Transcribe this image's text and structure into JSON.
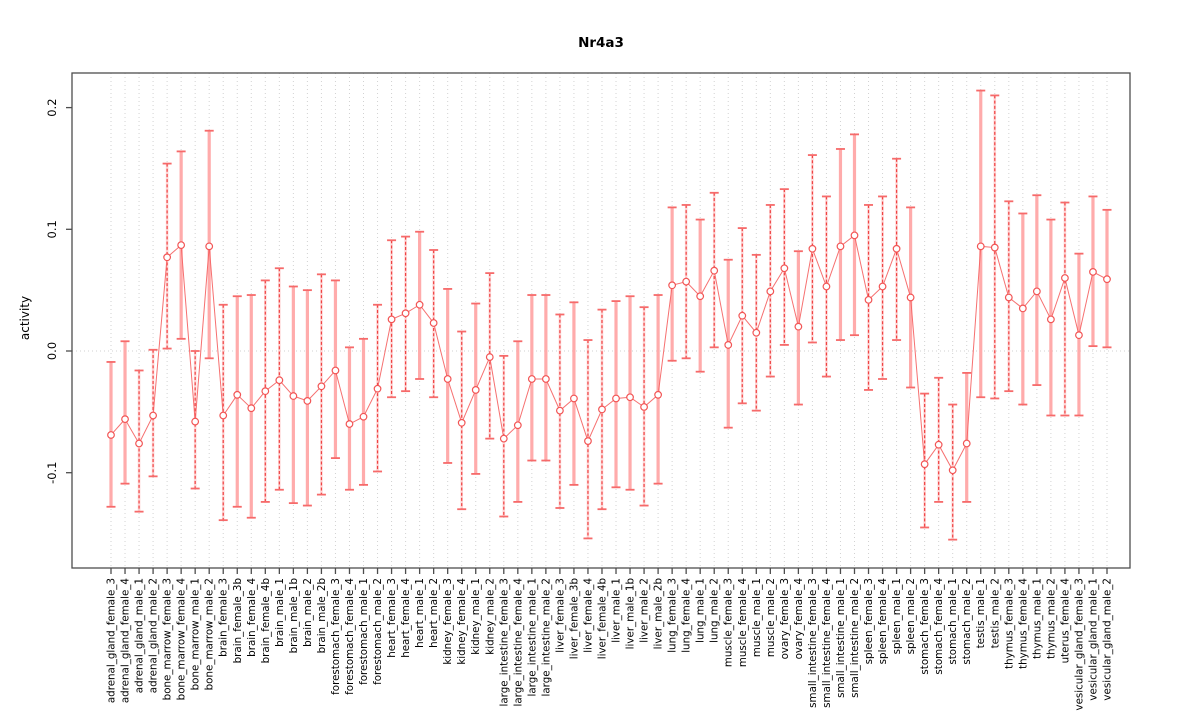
{
  "title": "Nr4a3",
  "colors": {
    "point": "#f25555",
    "line": "#f56060",
    "bar_solid": "#ffabab",
    "bar_dashed": "#ef4343",
    "bar_dashed_halo": "#ffc9c9",
    "cap": "#f66a6a",
    "grid": "#d2d2d2",
    "frame": "#4d4d4d",
    "text": "#000000"
  },
  "chart_data": {
    "type": "line",
    "title": "Nr4a3",
    "xlabel": "",
    "ylabel": "activity",
    "ylim": [
      -0.178,
      0.228
    ],
    "yticks": [
      -0.1,
      0.0,
      0.1,
      0.2
    ],
    "ytick_labels": [
      "-0.1",
      "0.0",
      "0.1",
      "0.2"
    ],
    "legend": "none",
    "grid": "vertical dotted gridline at every category; dotted horizontal line at y=0",
    "marker": "open-circle",
    "error_bars": true,
    "categories": [
      "adrenal_gland_female_3",
      "adrenal_gland_female_4",
      "adrenal_gland_male_1",
      "adrenal_gland_male_2",
      "bone_marrow_female_3",
      "bone_marrow_female_4",
      "bone_marrow_male_1",
      "bone_marrow_male_2",
      "brain_female_3",
      "brain_female_3b",
      "brain_female_4",
      "brain_female_4b",
      "brain_male_1",
      "brain_male_1b",
      "brain_male_2",
      "brain_male_2b",
      "forestomach_female_3",
      "forestomach_female_4",
      "forestomach_male_1",
      "forestomach_male_2",
      "heart_female_3",
      "heart_female_4",
      "heart_male_1",
      "heart_male_2",
      "kidney_female_3",
      "kidney_female_4",
      "kidney_male_1",
      "kidney_male_2",
      "large_intestine_female_3",
      "large_intestine_female_4",
      "large_intestine_male_1",
      "large_intestine_male_2",
      "liver_female_3",
      "liver_female_3b",
      "liver_female_4",
      "liver_female_4b",
      "liver_male_1",
      "liver_male_1b",
      "liver_male_2",
      "liver_male_2b",
      "lung_female_3",
      "lung_female_4",
      "lung_male_1",
      "lung_male_2",
      "muscle_female_3",
      "muscle_female_4",
      "muscle_male_1",
      "muscle_male_2",
      "ovary_female_3",
      "ovary_female_4",
      "small_intestine_female_3",
      "small_intestine_female_4",
      "small_intestine_male_1",
      "small_intestine_male_2",
      "spleen_female_3",
      "spleen_female_4",
      "spleen_male_1",
      "spleen_male_2",
      "stomach_female_3",
      "stomach_female_4",
      "stomach_male_1",
      "stomach_male_2",
      "testis_male_1",
      "testis_male_2",
      "thymus_female_3",
      "thymus_female_4",
      "thymus_male_1",
      "thymus_male_2",
      "uterus_female_4",
      "vesicular_gland_female_3",
      "vesicular_gland_male_1",
      "vesicular_gland_male_2"
    ],
    "series": [
      {
        "name": "activity",
        "values": [
          -0.069,
          -0.056,
          -0.076,
          -0.053,
          0.077,
          0.087,
          -0.058,
          0.086,
          -0.053,
          -0.036,
          -0.047,
          -0.033,
          -0.024,
          -0.037,
          -0.041,
          -0.029,
          -0.016,
          -0.06,
          -0.054,
          -0.031,
          0.026,
          0.031,
          0.038,
          0.023,
          -0.023,
          -0.059,
          -0.032,
          -0.005,
          -0.072,
          -0.061,
          -0.023,
          -0.023,
          -0.049,
          -0.039,
          -0.074,
          -0.048,
          -0.039,
          -0.038,
          -0.046,
          -0.036,
          0.054,
          0.057,
          0.045,
          0.066,
          0.005,
          0.029,
          0.015,
          0.049,
          0.068,
          0.02,
          0.084,
          0.053,
          0.086,
          0.095,
          0.042,
          0.053,
          0.084,
          0.044,
          -0.093,
          -0.077,
          -0.098,
          -0.076,
          0.086,
          0.085,
          0.044,
          0.035,
          0.049,
          0.026,
          0.06,
          0.013,
          0.065,
          0.059
        ]
      }
    ],
    "error_high": [
      -0.009,
      0.008,
      -0.016,
      0.001,
      0.154,
      0.164,
      0.0,
      0.181,
      0.038,
      0.045,
      0.046,
      0.058,
      0.068,
      0.053,
      0.05,
      0.063,
      0.058,
      0.003,
      0.01,
      0.038,
      0.091,
      0.094,
      0.098,
      0.083,
      0.051,
      0.016,
      0.039,
      0.064,
      -0.004,
      0.008,
      0.046,
      0.046,
      0.03,
      0.04,
      0.009,
      0.034,
      0.041,
      0.045,
      0.036,
      0.046,
      0.118,
      0.12,
      0.108,
      0.13,
      0.075,
      0.101,
      0.079,
      0.12,
      0.133,
      0.082,
      0.161,
      0.127,
      0.166,
      0.178,
      0.12,
      0.127,
      0.158,
      0.118,
      -0.035,
      -0.022,
      -0.044,
      -0.018,
      0.214,
      0.21,
      0.123,
      0.113,
      0.128,
      0.108,
      0.122,
      0.08,
      0.127,
      0.116
    ],
    "error_low": [
      -0.128,
      -0.109,
      -0.132,
      -0.103,
      0.002,
      0.01,
      -0.113,
      -0.006,
      -0.139,
      -0.128,
      -0.137,
      -0.124,
      -0.114,
      -0.125,
      -0.127,
      -0.118,
      -0.088,
      -0.114,
      -0.11,
      -0.099,
      -0.038,
      -0.033,
      -0.023,
      -0.038,
      -0.092,
      -0.13,
      -0.101,
      -0.072,
      -0.136,
      -0.124,
      -0.09,
      -0.09,
      -0.129,
      -0.11,
      -0.154,
      -0.13,
      -0.112,
      -0.114,
      -0.127,
      -0.109,
      -0.008,
      -0.006,
      -0.017,
      0.003,
      -0.063,
      -0.043,
      -0.049,
      -0.021,
      0.005,
      -0.044,
      0.007,
      -0.021,
      0.009,
      0.013,
      -0.032,
      -0.023,
      0.009,
      -0.03,
      -0.145,
      -0.124,
      -0.155,
      -0.124,
      -0.038,
      -0.039,
      -0.033,
      -0.044,
      -0.028,
      -0.053,
      -0.053,
      -0.053,
      0.004,
      0.003
    ],
    "bar_styles": [
      "solid",
      "solid",
      "dashed",
      "dashed",
      "dashed",
      "solid",
      "dashed",
      "solid",
      "dashed",
      "solid",
      "solid",
      "dashed",
      "dashed",
      "solid",
      "solid",
      "dashed",
      "solid",
      "solid",
      "solid",
      "dashed",
      "dashed",
      "dashed",
      "solid",
      "dashed",
      "solid",
      "dashed",
      "solid",
      "dashed",
      "dashed",
      "solid",
      "solid",
      "solid",
      "dashed",
      "solid",
      "dashed",
      "dashed",
      "solid",
      "solid",
      "dashed",
      "solid",
      "solid",
      "dashed",
      "solid",
      "dashed",
      "solid",
      "dashed",
      "dashed",
      "dashed",
      "dashed",
      "solid",
      "dashed",
      "dashed",
      "solid",
      "solid",
      "dashed",
      "dashed",
      "dashed",
      "solid",
      "dashed",
      "dashed",
      "dashed",
      "solid",
      "solid",
      "dashed",
      "dashed",
      "solid",
      "solid",
      "solid",
      "dashed",
      "solid",
      "solid",
      "solid"
    ]
  }
}
